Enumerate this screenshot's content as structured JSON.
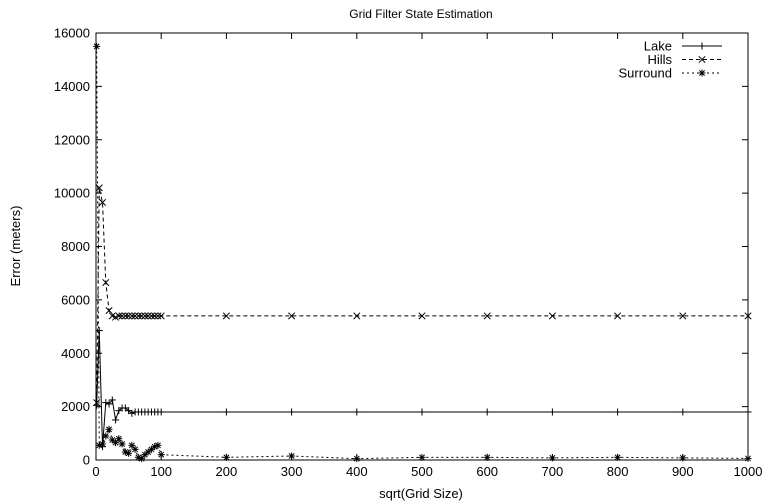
{
  "chart_data": {
    "type": "line",
    "title": "Grid Filter State Estimation",
    "xlabel": "sqrt(Grid Size)",
    "ylabel": "Error (meters)",
    "xlim": [
      0,
      1000
    ],
    "ylim": [
      0,
      16000
    ],
    "xticks": [
      0,
      100,
      200,
      300,
      400,
      500,
      600,
      700,
      800,
      900,
      1000
    ],
    "yticks": [
      0,
      2000,
      4000,
      6000,
      8000,
      10000,
      12000,
      14000,
      16000
    ],
    "grid": false,
    "legend_position": "top-right",
    "series": [
      {
        "name": "Lake",
        "marker": "plus",
        "line": "solid",
        "points": [
          [
            1,
            2050
          ],
          [
            5,
            4850
          ],
          [
            10,
            500
          ],
          [
            15,
            2150
          ],
          [
            20,
            2100
          ],
          [
            25,
            2250
          ],
          [
            30,
            1500
          ],
          [
            35,
            1850
          ],
          [
            40,
            1950
          ],
          [
            45,
            1950
          ],
          [
            50,
            1850
          ],
          [
            55,
            1750
          ],
          [
            60,
            1800
          ],
          [
            65,
            1800
          ],
          [
            70,
            1800
          ],
          [
            75,
            1800
          ],
          [
            80,
            1800
          ],
          [
            85,
            1800
          ],
          [
            90,
            1800
          ],
          [
            95,
            1800
          ],
          [
            100,
            1800
          ],
          [
            200,
            1800
          ],
          [
            300,
            1800
          ],
          [
            400,
            1800
          ],
          [
            500,
            1800
          ],
          [
            600,
            1800
          ],
          [
            700,
            1800
          ],
          [
            800,
            1800
          ],
          [
            900,
            1800
          ],
          [
            1000,
            1800
          ]
        ]
      },
      {
        "name": "Hills",
        "marker": "x",
        "line": "dashed",
        "points": [
          [
            1,
            2150
          ],
          [
            5,
            10200
          ],
          [
            10,
            9650
          ],
          [
            15,
            6650
          ],
          [
            20,
            5600
          ],
          [
            25,
            5400
          ],
          [
            30,
            5350
          ],
          [
            35,
            5400
          ],
          [
            40,
            5400
          ],
          [
            45,
            5400
          ],
          [
            50,
            5400
          ],
          [
            55,
            5400
          ],
          [
            60,
            5400
          ],
          [
            65,
            5400
          ],
          [
            70,
            5400
          ],
          [
            75,
            5400
          ],
          [
            80,
            5400
          ],
          [
            85,
            5400
          ],
          [
            90,
            5400
          ],
          [
            95,
            5400
          ],
          [
            100,
            5400
          ],
          [
            200,
            5400
          ],
          [
            300,
            5400
          ],
          [
            400,
            5400
          ],
          [
            500,
            5400
          ],
          [
            600,
            5400
          ],
          [
            700,
            5400
          ],
          [
            800,
            5400
          ],
          [
            900,
            5400
          ],
          [
            1000,
            5400
          ]
        ]
      },
      {
        "name": "Surround",
        "marker": "star",
        "line": "dotted",
        "points": [
          [
            1,
            15500
          ],
          [
            5,
            550
          ],
          [
            10,
            600
          ],
          [
            15,
            900
          ],
          [
            20,
            1150
          ],
          [
            25,
            750
          ],
          [
            30,
            650
          ],
          [
            35,
            800
          ],
          [
            40,
            600
          ],
          [
            45,
            300
          ],
          [
            50,
            250
          ],
          [
            55,
            550
          ],
          [
            60,
            400
          ],
          [
            65,
            100
          ],
          [
            70,
            50
          ],
          [
            75,
            200
          ],
          [
            80,
            300
          ],
          [
            85,
            400
          ],
          [
            90,
            500
          ],
          [
            95,
            550
          ],
          [
            100,
            200
          ],
          [
            200,
            100
          ],
          [
            300,
            150
          ],
          [
            400,
            50
          ],
          [
            500,
            100
          ],
          [
            600,
            100
          ],
          [
            700,
            80
          ],
          [
            800,
            100
          ],
          [
            900,
            80
          ],
          [
            1000,
            60
          ]
        ]
      }
    ]
  }
}
